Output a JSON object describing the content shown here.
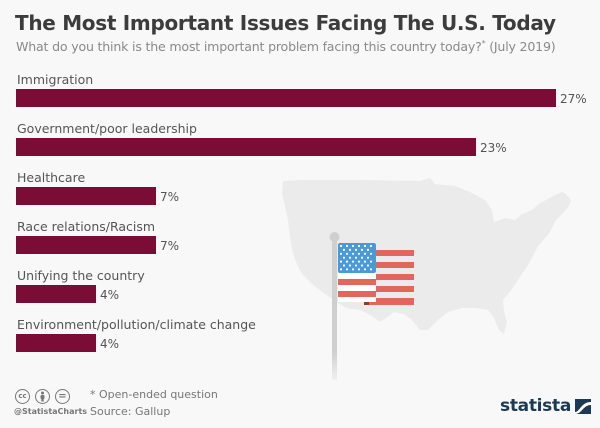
{
  "header": {
    "title": "The Most Important Issues Facing The U.S. Today",
    "subtitle": "What do you think is the most important problem facing this country today?",
    "subtitle_mark": "*",
    "subtitle_date": " (July 2019)"
  },
  "chart_data": {
    "type": "bar",
    "orientation": "horizontal",
    "title": "The Most Important Issues Facing The U.S. Today",
    "subtitle": "What do you think is the most important problem facing this country today?* (July 2019)",
    "categories": [
      "Immigration",
      "Government/poor leadership",
      "Healthcare",
      "Race relations/Racism",
      "Unifying the country",
      "Environment/pollution/climate change"
    ],
    "values": [
      27,
      23,
      7,
      7,
      4,
      4
    ],
    "value_labels": [
      "27%",
      "23%",
      "7%",
      "7%",
      "4%",
      "4%"
    ],
    "unit": "%",
    "xlim": [
      0,
      27
    ],
    "grid": false,
    "bar_color": "#7b0c35"
  },
  "footer": {
    "icons": [
      "cc-icon",
      "attribution-icon",
      "no-derivatives-icon"
    ],
    "icon_glyphs": [
      "cc",
      "",
      "="
    ],
    "handle": "@StatistaCharts",
    "note": "* Open-ended question",
    "source": "Source: Gallup"
  },
  "brand": {
    "name": "statista",
    "color": "#1b3a55"
  },
  "colors": {
    "background": "#f8f8f8",
    "map": "#ebebeb",
    "flag_blue": "#4a9ad8",
    "flag_red": "#e0675a",
    "flag_red_dark": "#8e3b32"
  }
}
